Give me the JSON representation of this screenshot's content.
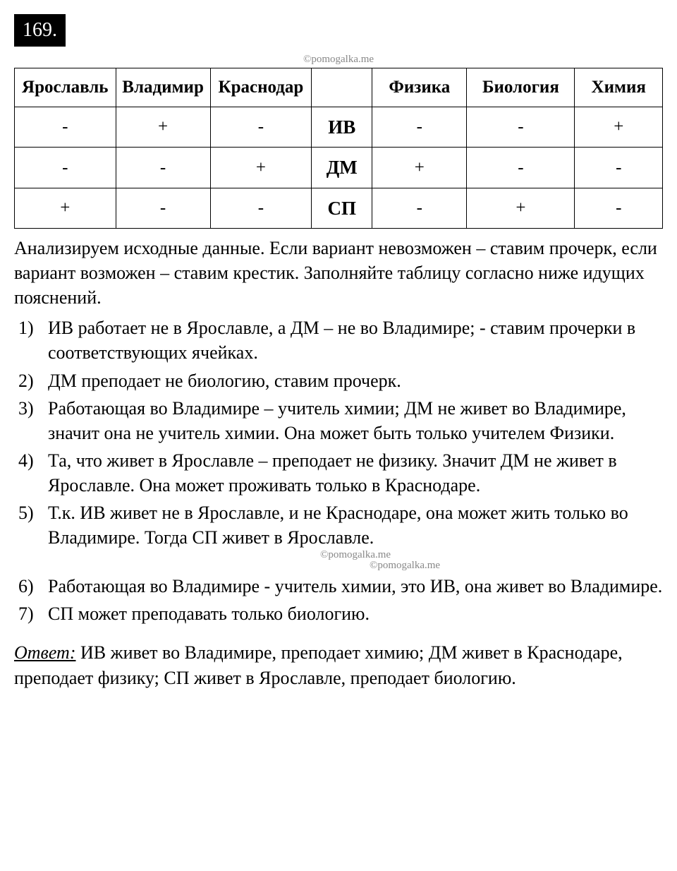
{
  "problem": {
    "number": "169."
  },
  "watermark": {
    "text": "©pomogalka.me"
  },
  "table": {
    "headers": [
      "Ярославль",
      "Владимир",
      "Краснодар",
      "",
      "Физика",
      "Биология",
      "Химия"
    ],
    "rows": [
      {
        "cells": [
          "-",
          "+",
          "-"
        ],
        "code": "ИВ",
        "subjects": [
          "-",
          "-",
          "+"
        ]
      },
      {
        "cells": [
          "-",
          "-",
          "+"
        ],
        "code": "ДМ",
        "subjects": [
          "+",
          "-",
          "-"
        ]
      },
      {
        "cells": [
          "+",
          "-",
          "-"
        ],
        "code": "СП",
        "subjects": [
          "-",
          "+",
          "-"
        ]
      }
    ],
    "column_widths": {
      "yaroslavl": "15%",
      "vladimir": "14%",
      "krasnodar": "15%",
      "code": "9%",
      "physics": "14%",
      "biology": "16%",
      "chemistry": "13%"
    },
    "border_color": "#000000",
    "header_fontweight": "bold",
    "cell_fontsize": 25,
    "code_fontsize": 27
  },
  "intro": {
    "text": "Анализируем исходные данные. Если вариант невозможен – ставим прочерк, если вариант возможен – ставим крестик. Заполняйте таблицу согласно ниже идущих пояснений."
  },
  "steps": [
    "ИВ работает не в Ярославле, а ДМ – не во Владимире; - ставим прочерки в соответствующих ячейках.",
    "ДМ преподает не биологию, ставим прочерк.",
    "Работающая во Владимире – учитель химии; ДМ не живет во Владимире, значит она не учитель химии. Она может быть только учителем Физики.",
    "Та, что живет в Ярославле – преподает не физику. Значит ДМ не живет в Ярославле. Она может проживать только в Краснодаре.",
    "Т.к. ИВ живет не в Ярославле, и не Краснодаре, она может жить только во Владимире. Тогда СП живет в Ярославле.",
    "Работающая во Владимире - учитель химии, это ИВ, она живет во Владимире.",
    "СП может преподавать только биологию."
  ],
  "answer": {
    "label": "Ответ:",
    "text": " ИВ живет во Владимире, преподает химию; ДМ живет в Краснодаре, преподает физику; СП живет в Ярославле, преподает биологию."
  },
  "colors": {
    "background": "#ffffff",
    "text": "#000000",
    "problem_bg": "#000000",
    "problem_fg": "#ffffff",
    "watermark": "#888888"
  },
  "typography": {
    "body_fontsize": 26,
    "problem_fontsize": 28,
    "watermark_fontsize": 15,
    "font_family": "Times New Roman"
  }
}
